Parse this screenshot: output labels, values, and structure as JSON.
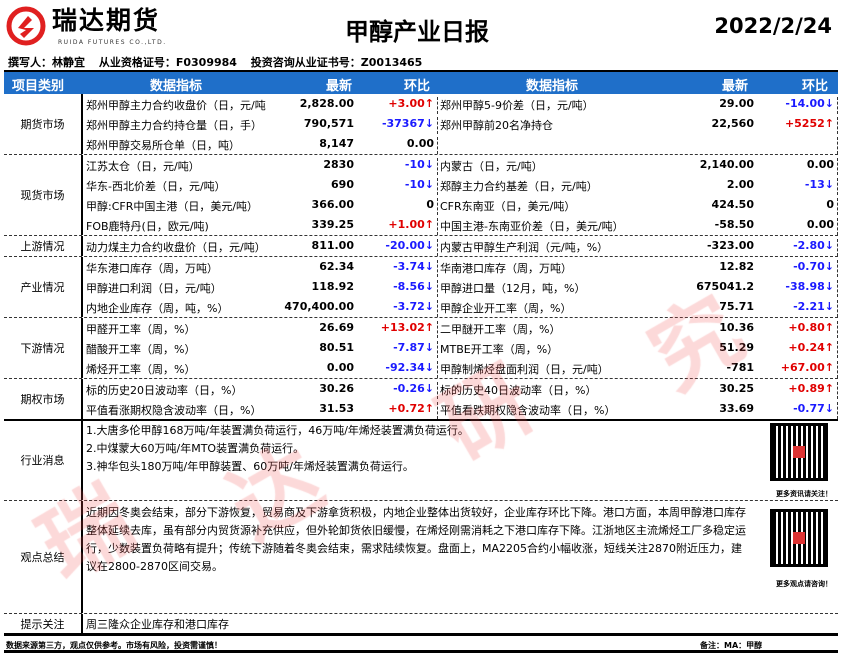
{
  "header": {
    "brand": "瑞达期货",
    "brand_en": "RUIDA FUTURES CO.,LTD.",
    "title": "甲醇产业日报",
    "date": "2022/2/24"
  },
  "author": {
    "writer": "撰写人：林静宜",
    "cert": "从业资格证号：F0309984",
    "consult": "投资咨询从业证书号：Z0013465"
  },
  "table_header": {
    "category": "项目类别",
    "indicator": "数据指标",
    "latest": "最新",
    "change": "环比"
  },
  "colors": {
    "header_bg": "#1f6fc9",
    "up": "#e00000",
    "down": "#1a1aff"
  },
  "groups": [
    {
      "category": "期货市场",
      "rows": [
        [
          "郑州甲醇主力合约收盘价（日，元/吨",
          "2,828.00",
          "+3.00↑",
          "郑州甲醇5-9价差（日，元/吨）",
          "29.00",
          "-14.00↓"
        ],
        [
          "郑州甲醇主力合约持仓量（日，手）",
          "790,571",
          "-37367↓",
          "郑州甲醇前20名净持仓",
          "22,560",
          "+5252↑"
        ],
        [
          "郑州甲醇交易所仓单（日，吨）",
          "8,147",
          "0.00",
          "",
          "",
          ""
        ]
      ]
    },
    {
      "category": "现货市场",
      "rows": [
        [
          "江苏太仓（日，元/吨）",
          "2830",
          "-10↓",
          "内蒙古（日，元/吨）",
          "2,140.00",
          "0.00"
        ],
        [
          "华东-西北价差（日，元/吨）",
          "690",
          "-10↓",
          "郑醇主力合约基差（日，元/吨）",
          "2.00",
          "-13↓"
        ],
        [
          "甲醇:CFR中国主港（日，美元/吨）",
          "366.00",
          "0",
          "CFR东南亚（日，美元/吨）",
          "424.50",
          "0"
        ],
        [
          "FOB鹿特丹(日，欧元/吨)",
          "339.25",
          "+1.00↑",
          "中国主港-东南亚价差（日，美元/吨）",
          "-58.50",
          "0.00"
        ]
      ]
    },
    {
      "category": "上游情况",
      "rows": [
        [
          "动力煤主力合约收盘价（日，元/吨）",
          "811.00",
          "-20.00↓",
          "内蒙古甲醇生产利润（元/吨，%）",
          "-323.00",
          "-2.80↓"
        ]
      ]
    },
    {
      "category": "产业情况",
      "rows": [
        [
          "华东港口库存（周，万吨）",
          "62.34",
          "-3.74↓",
          "华南港口库存（周，万吨）",
          "12.82",
          "-0.70↓"
        ],
        [
          "甲醇进口利润（日，元/吨）",
          "118.92",
          "-8.56↓",
          "甲醇进口量（12月，吨，%）",
          "675041.2",
          "-38.98↓"
        ],
        [
          "内地企业库存（周，吨，%）",
          "470,400.00",
          "-3.72↓",
          "甲醇企业开工率（周，%）",
          "75.71",
          "-2.21↓"
        ]
      ]
    },
    {
      "category": "下游情况",
      "rows": [
        [
          "甲醛开工率（周，%）",
          "26.69",
          "+13.02↑",
          "二甲醚开工率（周，%）",
          "10.36",
          "+0.80↑"
        ],
        [
          "醋酸开工率（周，%）",
          "80.51",
          "-7.87↓",
          "MTBE开工率（周，%）",
          "51.29",
          "+0.24↑"
        ],
        [
          "烯烃开工率（周，%）",
          "0.00",
          "-92.34↓",
          "甲醇制烯烃盘面利润（日，元/吨）",
          "-781",
          "+67.00↑"
        ]
      ]
    },
    {
      "category": "期权市场",
      "rows": [
        [
          "标的历史20日波动率（日，%）",
          "30.26",
          "-0.26↓",
          "标的历史40日波动率（日，%）",
          "30.25",
          "+0.89↑"
        ],
        [
          "平值看涨期权隐含波动率（日，%）",
          "31.53",
          "+0.72↑",
          "平值看跌期权隐含波动率（日，%）",
          "33.69",
          "-0.77↓"
        ]
      ]
    }
  ],
  "news": {
    "label": "行业消息",
    "lines": [
      "1.大唐多伦甲醇168万吨/年装置满负荷运行，46万吨/年烯烃装置满负荷运行。",
      "2.中煤蒙大60万吨/年MTO装置满负荷运行。",
      "3.神华包头180万吨/年甲醇装置、60万吨/年烯烃装置满负荷运行。"
    ],
    "qr_caption": "更多资讯请关注！"
  },
  "view": {
    "label": "观点总结",
    "text": "近期因冬奥会结束，部分下游恢复，贸易商及下游拿货积极，内地企业整体出货较好，企业库存环比下降。港口方面，本周甲醇港口库存整体延续去库，虽有部分内贸货源补充供应，但外轮卸货依旧缓慢，在烯烃刚需消耗之下港口库存下降。江浙地区主流烯烃工厂多稳定运行，少数装置负荷略有提升；传统下游随着冬奥会结束，需求陆续恢复。盘面上，MA2205合约小幅收涨，短线关注2870附近压力，建议在2800-2870区间交易。",
    "qr_caption": "更多观点请咨询！"
  },
  "tip": {
    "label": "提示关注",
    "text": "周三隆众企业库存和港口库存"
  },
  "footer": {
    "disclaimer": "数据来源第三方，观点仅供参考。市场有风险，投资需谨慎！",
    "note": "备注：MA：甲醇"
  },
  "watermark": [
    "瑞",
    "达",
    "研",
    "究"
  ]
}
